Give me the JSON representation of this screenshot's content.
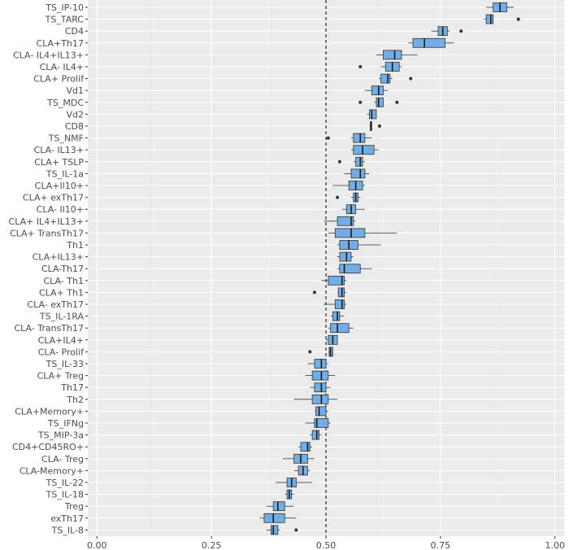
{
  "chart_data": {
    "type": "boxplot",
    "orientation": "horizontal",
    "title": "",
    "xlabel": "",
    "ylabel": "",
    "xlim": [
      -0.02,
      1.02
    ],
    "x_ticks": [
      0.0,
      0.25,
      0.5,
      0.75,
      1.0
    ],
    "x_tick_labels": [
      "0.00",
      "0.25",
      "0.50",
      "0.75",
      "1.00"
    ],
    "reference_line": {
      "x": 0.5,
      "style": "dashed",
      "color": "#000000"
    },
    "box_color": "#72aee6",
    "panel_background": "#ebebeb",
    "grid": true,
    "categories": [
      {
        "label": "TS_IP-10",
        "whislo": 0.85,
        "q1": 0.865,
        "med": 0.88,
        "q3": 0.895,
        "whishi": 0.91,
        "outliers": []
      },
      {
        "label": "TS_TARC",
        "whislo": 0.845,
        "q1": 0.85,
        "med": 0.86,
        "q3": 0.865,
        "whishi": 0.865,
        "outliers": [
          0.92
        ]
      },
      {
        "label": "CD4",
        "whislo": 0.73,
        "q1": 0.745,
        "med": 0.755,
        "q3": 0.765,
        "whishi": 0.77,
        "outliers": [
          0.795
        ]
      },
      {
        "label": "CLA+Th17",
        "whislo": 0.68,
        "q1": 0.69,
        "med": 0.715,
        "q3": 0.76,
        "whishi": 0.78,
        "outliers": []
      },
      {
        "label": "CLA- IL4+IL13+",
        "whislo": 0.61,
        "q1": 0.625,
        "med": 0.65,
        "q3": 0.665,
        "whishi": 0.7,
        "outliers": []
      },
      {
        "label": "CLA- IL4+",
        "whislo": 0.62,
        "q1": 0.63,
        "med": 0.645,
        "q3": 0.66,
        "whishi": 0.665,
        "outliers": [
          0.575
        ]
      },
      {
        "label": "CLA+ Prolif",
        "whislo": 0.615,
        "q1": 0.62,
        "med": 0.635,
        "q3": 0.64,
        "whishi": 0.645,
        "outliers": [
          0.685
        ]
      },
      {
        "label": "Vd1",
        "whislo": 0.585,
        "q1": 0.6,
        "med": 0.615,
        "q3": 0.625,
        "whishi": 0.635,
        "outliers": []
      },
      {
        "label": "TS_MDC",
        "whislo": 0.605,
        "q1": 0.61,
        "med": 0.615,
        "q3": 0.625,
        "whishi": 0.625,
        "outliers": [
          0.575,
          0.655
        ]
      },
      {
        "label": "Vd2",
        "whislo": 0.59,
        "q1": 0.595,
        "med": 0.6,
        "q3": 0.61,
        "whishi": 0.61,
        "outliers": []
      },
      {
        "label": "CD8",
        "whislo": 0.595,
        "q1": 0.597,
        "med": 0.598,
        "q3": 0.6,
        "whishi": 0.6,
        "outliers": [
          0.617
        ]
      },
      {
        "label": "TS_NMF",
        "whislo": 0.555,
        "q1": 0.56,
        "med": 0.575,
        "q3": 0.585,
        "whishi": 0.6,
        "outliers": [
          0.505
        ]
      },
      {
        "label": "CLA- IL13+",
        "whislo": 0.555,
        "q1": 0.56,
        "med": 0.58,
        "q3": 0.605,
        "whishi": 0.615,
        "outliers": []
      },
      {
        "label": "CLA+ TSLP",
        "whislo": 0.56,
        "q1": 0.565,
        "med": 0.575,
        "q3": 0.58,
        "whishi": 0.585,
        "outliers": [
          0.53
        ]
      },
      {
        "label": "TS_IL-1a",
        "whislo": 0.54,
        "q1": 0.555,
        "med": 0.575,
        "q3": 0.585,
        "whishi": 0.595,
        "outliers": []
      },
      {
        "label": "CLA+Il10+",
        "whislo": 0.515,
        "q1": 0.55,
        "med": 0.565,
        "q3": 0.58,
        "whishi": 0.585,
        "outliers": []
      },
      {
        "label": "CLA+ exTh17",
        "whislo": 0.555,
        "q1": 0.56,
        "med": 0.565,
        "q3": 0.57,
        "whishi": 0.575,
        "outliers": [
          0.525
        ]
      },
      {
        "label": "CLA- Il10+",
        "whislo": 0.535,
        "q1": 0.545,
        "med": 0.555,
        "q3": 0.565,
        "whishi": 0.585,
        "outliers": []
      },
      {
        "label": "CLA+ IL4+IL13+",
        "whislo": 0.495,
        "q1": 0.525,
        "med": 0.555,
        "q3": 0.56,
        "whishi": 0.565,
        "outliers": []
      },
      {
        "label": "CLA+ TransTh17",
        "whislo": 0.505,
        "q1": 0.52,
        "med": 0.555,
        "q3": 0.585,
        "whishi": 0.655,
        "outliers": []
      },
      {
        "label": "Th1",
        "whislo": 0.525,
        "q1": 0.53,
        "med": 0.55,
        "q3": 0.57,
        "whishi": 0.62,
        "outliers": []
      },
      {
        "label": "CLA+IL13+",
        "whislo": 0.525,
        "q1": 0.53,
        "med": 0.545,
        "q3": 0.555,
        "whishi": 0.56,
        "outliers": []
      },
      {
        "label": "CLA-Th17",
        "whislo": 0.525,
        "q1": 0.53,
        "med": 0.54,
        "q3": 0.575,
        "whishi": 0.6,
        "outliers": []
      },
      {
        "label": "CLA- Th1",
        "whislo": 0.49,
        "q1": 0.505,
        "med": 0.535,
        "q3": 0.54,
        "whishi": 0.545,
        "outliers": []
      },
      {
        "label": "CLA+ Th1",
        "whislo": 0.525,
        "q1": 0.527,
        "med": 0.535,
        "q3": 0.54,
        "whishi": 0.545,
        "outliers": [
          0.475
        ]
      },
      {
        "label": "CLA- exTh17",
        "whislo": 0.495,
        "q1": 0.52,
        "med": 0.535,
        "q3": 0.54,
        "whishi": 0.545,
        "outliers": []
      },
      {
        "label": "TS_IL-1RA",
        "whislo": 0.51,
        "q1": 0.515,
        "med": 0.525,
        "q3": 0.53,
        "whishi": 0.54,
        "outliers": []
      },
      {
        "label": "CLA- TransTh17",
        "whislo": 0.505,
        "q1": 0.51,
        "med": 0.525,
        "q3": 0.55,
        "whishi": 0.56,
        "outliers": []
      },
      {
        "label": "CLA+IL4+",
        "whislo": 0.5,
        "q1": 0.505,
        "med": 0.515,
        "q3": 0.525,
        "whishi": 0.525,
        "outliers": []
      },
      {
        "label": "CLA- Prolif",
        "whislo": 0.505,
        "q1": 0.507,
        "med": 0.51,
        "q3": 0.515,
        "whishi": 0.515,
        "outliers": [
          0.465
        ]
      },
      {
        "label": "TS_IL-33",
        "whislo": 0.46,
        "q1": 0.475,
        "med": 0.49,
        "q3": 0.5,
        "whishi": 0.505,
        "outliers": []
      },
      {
        "label": "CLA+ Treg",
        "whislo": 0.455,
        "q1": 0.47,
        "med": 0.49,
        "q3": 0.505,
        "whishi": 0.52,
        "outliers": []
      },
      {
        "label": "Th17",
        "whislo": 0.465,
        "q1": 0.475,
        "med": 0.49,
        "q3": 0.5,
        "whishi": 0.51,
        "outliers": []
      },
      {
        "label": "Th2",
        "whislo": 0.43,
        "q1": 0.47,
        "med": 0.49,
        "q3": 0.505,
        "whishi": 0.525,
        "outliers": []
      },
      {
        "label": "CLA+Memory+",
        "whislo": 0.475,
        "q1": 0.478,
        "med": 0.485,
        "q3": 0.5,
        "whishi": 0.505,
        "outliers": []
      },
      {
        "label": "TS_IFNg",
        "whislo": 0.455,
        "q1": 0.475,
        "med": 0.48,
        "q3": 0.505,
        "whishi": 0.51,
        "outliers": []
      },
      {
        "label": "TS_MIP-3a",
        "whislo": 0.465,
        "q1": 0.47,
        "med": 0.48,
        "q3": 0.485,
        "whishi": 0.49,
        "outliers": []
      },
      {
        "label": "CD4+CD45RO+",
        "whislo": 0.44,
        "q1": 0.445,
        "med": 0.46,
        "q3": 0.465,
        "whishi": 0.47,
        "outliers": []
      },
      {
        "label": "CLA- Treg",
        "whislo": 0.405,
        "q1": 0.43,
        "med": 0.445,
        "q3": 0.46,
        "whishi": 0.475,
        "outliers": []
      },
      {
        "label": "CLA-Memory+",
        "whislo": 0.43,
        "q1": 0.44,
        "med": 0.45,
        "q3": 0.46,
        "whishi": 0.465,
        "outliers": []
      },
      {
        "label": "TS_IL-22",
        "whislo": 0.39,
        "q1": 0.415,
        "med": 0.425,
        "q3": 0.435,
        "whishi": 0.47,
        "outliers": []
      },
      {
        "label": "TS_IL-18",
        "whislo": 0.41,
        "q1": 0.415,
        "med": 0.42,
        "q3": 0.425,
        "whishi": 0.43,
        "outliers": []
      },
      {
        "label": "Treg",
        "whislo": 0.37,
        "q1": 0.385,
        "med": 0.395,
        "q3": 0.41,
        "whishi": 0.43,
        "outliers": []
      },
      {
        "label": "exTh17",
        "whislo": 0.355,
        "q1": 0.365,
        "med": 0.385,
        "q3": 0.41,
        "whishi": 0.435,
        "outliers": []
      },
      {
        "label": "TS_IL-8",
        "whislo": 0.37,
        "q1": 0.38,
        "med": 0.385,
        "q3": 0.395,
        "whishi": 0.4,
        "outliers": [
          0.435
        ]
      }
    ]
  }
}
